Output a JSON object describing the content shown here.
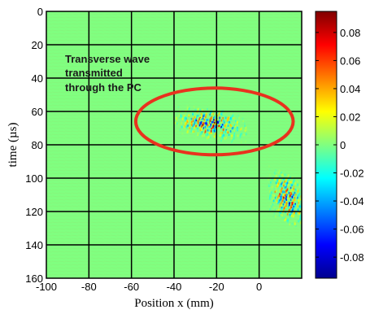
{
  "chart_data": {
    "type": "heatmap",
    "title": "",
    "xlabel": "Position x (mm)",
    "ylabel": "time (µs)",
    "xlim": [
      -100,
      20
    ],
    "ylim": [
      160,
      0
    ],
    "x_ticks": [
      -100,
      -80,
      -60,
      -40,
      -20,
      0
    ],
    "y_ticks": [
      0,
      20,
      40,
      60,
      80,
      100,
      120,
      140,
      160
    ],
    "grid": true,
    "background_value": 0,
    "colorbar": {
      "range": [
        -0.095,
        0.095
      ],
      "ticks": [
        0.08,
        0.06,
        0.04,
        0.02,
        0,
        -0.02,
        -0.04,
        -0.06,
        -0.08
      ],
      "tick_labels": [
        "0.08",
        "0.06",
        "0.04",
        "0.02",
        "0",
        "-0.02",
        "-0.04",
        "-0.06",
        "-0.08"
      ],
      "colormap": "jet"
    },
    "wave_packets": [
      {
        "x_center": -23,
        "t_center": 67,
        "x_span": 34,
        "t_span": 18,
        "amplitude": 0.09
      },
      {
        "x_center": 13,
        "t_center": 112,
        "x_span": 18,
        "t_span": 30,
        "amplitude": 0.08
      }
    ],
    "annotation": {
      "lines": [
        "Transverse wave",
        "transmitted",
        "through the PC"
      ],
      "ellipse_center": [
        -21,
        66
      ],
      "ellipse_radius_mm": 37,
      "ellipse_radius_us": 20,
      "ellipse_color": "#e8321e"
    }
  }
}
